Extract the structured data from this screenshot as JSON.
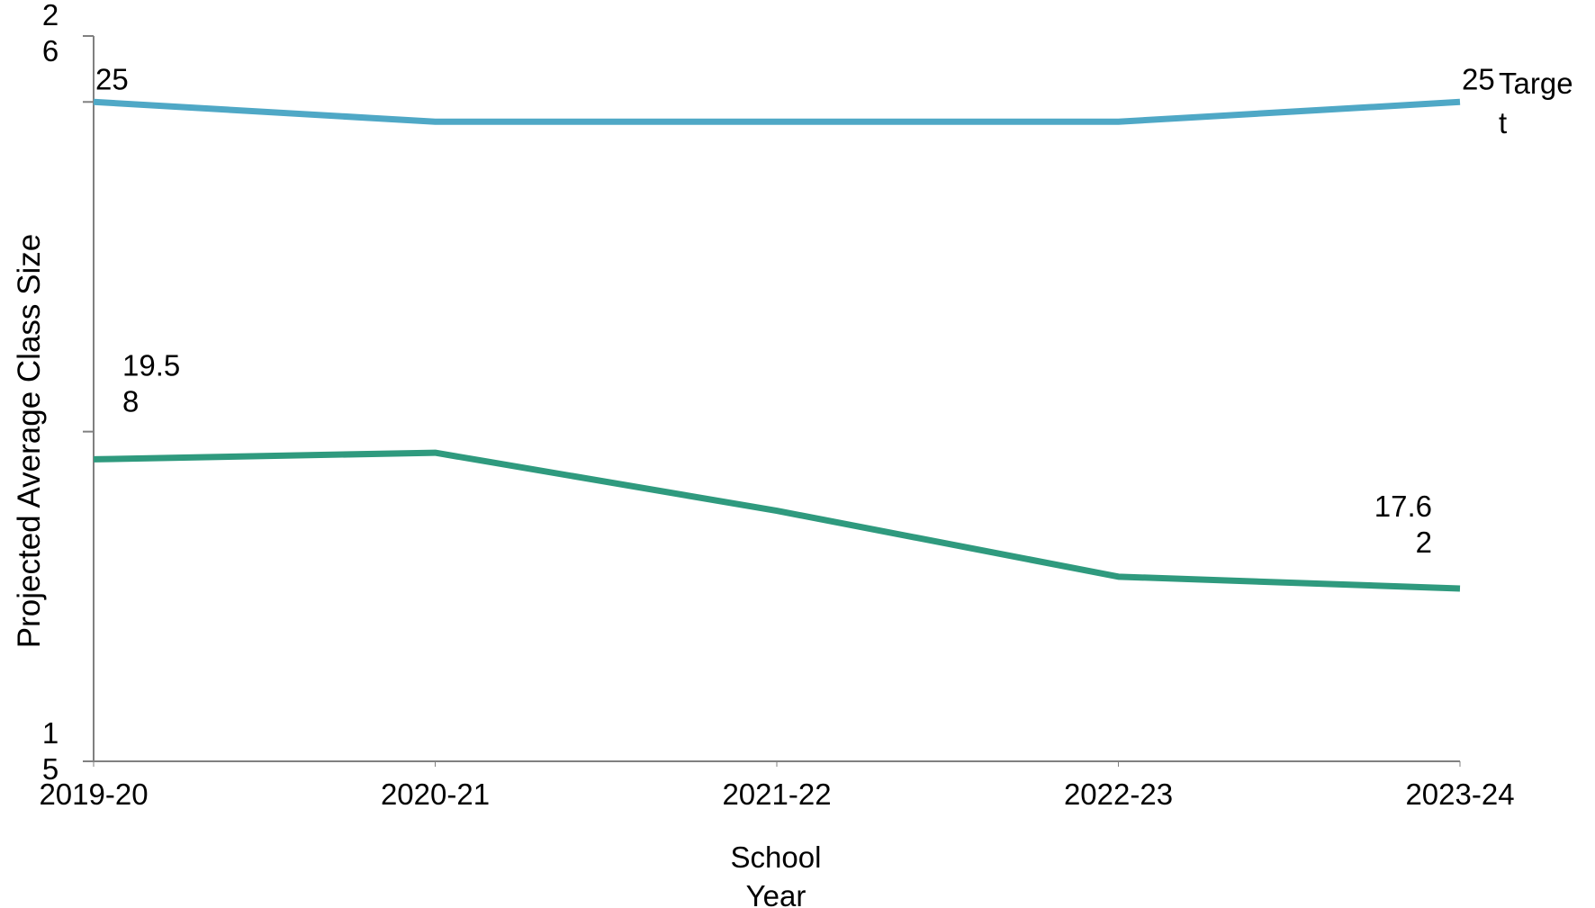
{
  "chart_data": {
    "type": "line",
    "title": "",
    "xlabel": "School Year",
    "ylabel": "Projected Average Class Size",
    "categories": [
      "2019-20",
      "2020-21",
      "2021-22",
      "2022-23",
      "2023-24"
    ],
    "ylim": [
      15,
      26
    ],
    "y_tick_labels": [
      "15",
      "26"
    ],
    "grid": false,
    "series": [
      {
        "name": "Target",
        "values": [
          25,
          24.7,
          24.7,
          24.7,
          25
        ],
        "color": "#4fa8c6",
        "data_labels": [
          "25",
          "",
          "",
          "",
          "25"
        ]
      },
      {
        "name": "",
        "values": [
          19.58,
          19.68,
          18.8,
          17.8,
          17.62
        ],
        "color": "#2f9a7e",
        "data_labels": [
          "19.58",
          "",
          "",
          "",
          "17.62"
        ]
      }
    ]
  }
}
